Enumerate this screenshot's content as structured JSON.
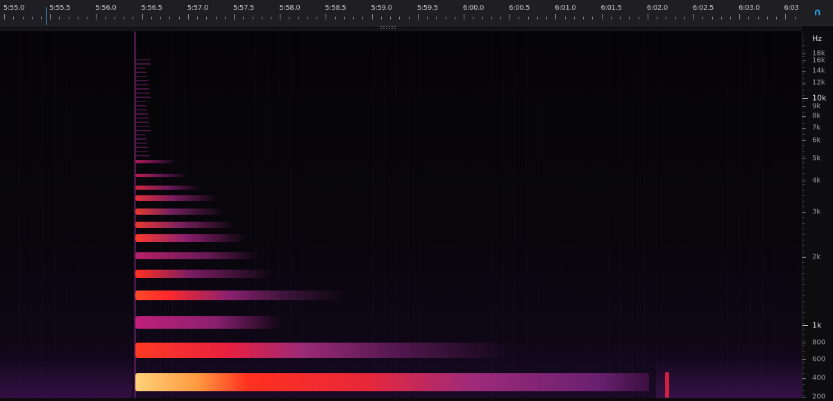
{
  "timeline": {
    "labels": [
      "5:55.0",
      "5:55.5",
      "5:56.0",
      "5:56.5",
      "5:57.0",
      "5:57.5",
      "5:58.0",
      "5:58.5",
      "5:59.0",
      "5:59.5",
      "6:00.0",
      "6:00.5",
      "6:01.0",
      "6:01.5",
      "6:02.0",
      "6:02.5",
      "6:03.0",
      "6:03"
    ],
    "playhead_color": "#3aa7e8"
  },
  "corner_icon": "headphones-icon",
  "frequency_axis": {
    "unit": "Hz",
    "labels": [
      "18k",
      "16k",
      "14k",
      "12k",
      "10k",
      "9k",
      "8k",
      "7k",
      "6k",
      "5k",
      "4k",
      "3k",
      "2k",
      "1k",
      "800",
      "600",
      "400",
      "200"
    ],
    "major": [
      "10k",
      "1k"
    ]
  },
  "colors": {
    "background": "#0b0b0d",
    "ruler": "#1f1f23",
    "accent": "#27a3f2",
    "hot": "#ffd27a",
    "red": "#ff2a2a",
    "magenta": "#7a1a6e"
  }
}
